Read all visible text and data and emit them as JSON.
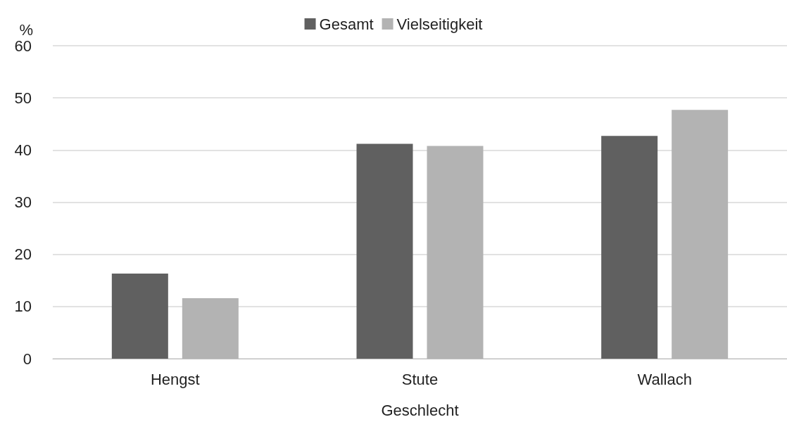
{
  "chart_data": {
    "type": "bar",
    "xlabel": "Geschlecht",
    "ylabel": "%",
    "categories": [
      "Hengst",
      "Stute",
      "Wallach"
    ],
    "series": [
      {
        "name": "Gesamt",
        "color": "#606060",
        "values": [
          16.3,
          41.2,
          42.7
        ]
      },
      {
        "name": "Vielseitigkeit",
        "color": "#b3b3b3",
        "values": [
          11.6,
          40.8,
          47.7
        ]
      }
    ],
    "ylim": [
      0,
      60
    ],
    "yticks": [
      0,
      10,
      20,
      30,
      40,
      50,
      60
    ],
    "grid": "y",
    "legend": "top"
  }
}
